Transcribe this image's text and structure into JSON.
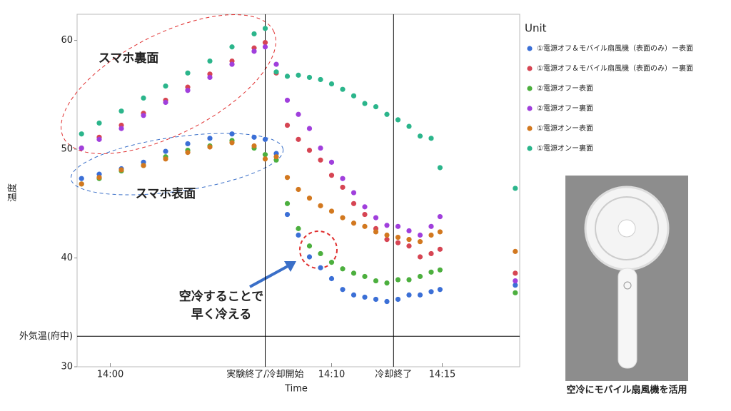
{
  "chart_data": {
    "type": "scatter",
    "x_label": "Time",
    "y_label": "温度",
    "legend_title": "Unit",
    "x": [
      -1.3,
      -0.5,
      0.5,
      1.5,
      2.5,
      3.5,
      4.5,
      5.5,
      6.5,
      7.0,
      7.5,
      8.0,
      8.5,
      9.0,
      9.5,
      10,
      10.5,
      11,
      11.5,
      12,
      12.5,
      13,
      13.5,
      14,
      14.5,
      14.9,
      18.3
    ],
    "series": [
      {
        "name": "①電源オフ＆モバイル扇風機（表面のみ）ー表面",
        "color": "#3b6fd6",
        "values": [
          47.3,
          47.7,
          48.2,
          48.8,
          49.8,
          50.5,
          51.0,
          51.4,
          51.1,
          50.9,
          49.6,
          44.0,
          42.1,
          40.1,
          39.1,
          38.1,
          37.1,
          36.6,
          36.4,
          36.2,
          36.0,
          36.2,
          36.6,
          36.6,
          36.9,
          37.1,
          37.5
        ]
      },
      {
        "name": "①電源オフ＆モバイル扇風機（表面のみ）ー裏面",
        "color": "#d64553",
        "values": [
          50.1,
          51.1,
          52.2,
          53.3,
          54.5,
          55.7,
          56.9,
          58.1,
          59.3,
          59.8,
          57.0,
          52.2,
          50.9,
          49.9,
          49.0,
          47.6,
          46.5,
          45.0,
          44.0,
          42.7,
          41.7,
          41.4,
          41.1,
          40.1,
          40.4,
          40.8,
          38.6
        ]
      },
      {
        "name": "②電源オフー表面",
        "color": "#4caf3e",
        "values": [
          46.8,
          47.3,
          48.0,
          48.5,
          49.3,
          49.9,
          50.3,
          50.8,
          50.1,
          49.5,
          49.0,
          45.0,
          42.7,
          41.1,
          40.4,
          39.6,
          39.0,
          38.6,
          38.3,
          37.9,
          37.7,
          38.0,
          38.0,
          38.3,
          38.7,
          38.9,
          36.8
        ]
      },
      {
        "name": "②電源オフー裏面",
        "color": "#a03fdc",
        "values": [
          50.1,
          50.9,
          51.9,
          53.1,
          54.3,
          55.4,
          56.6,
          57.8,
          59.0,
          59.4,
          57.8,
          54.5,
          53.2,
          51.9,
          50.1,
          48.8,
          47.3,
          46.0,
          44.7,
          43.7,
          43.0,
          42.9,
          42.5,
          42.1,
          42.9,
          43.8,
          37.9
        ]
      },
      {
        "name": "①電源オンー表面",
        "color": "#d2781f",
        "values": [
          46.8,
          47.4,
          48.1,
          48.5,
          49.1,
          49.7,
          50.2,
          50.6,
          50.3,
          49.1,
          49.3,
          47.4,
          46.3,
          45.5,
          44.8,
          44.3,
          43.7,
          43.2,
          42.9,
          42.4,
          42.1,
          41.9,
          41.7,
          41.5,
          42.1,
          42.4,
          40.6
        ]
      },
      {
        "name": "①電源オンー裏面",
        "color": "#2bb58b",
        "values": [
          51.4,
          52.4,
          53.5,
          54.7,
          55.8,
          57.0,
          58.1,
          59.4,
          60.6,
          61.1,
          57.1,
          56.7,
          56.8,
          56.6,
          56.4,
          56.0,
          55.5,
          54.9,
          54.2,
          53.9,
          53.2,
          52.7,
          52.1,
          51.2,
          51.0,
          48.3,
          46.4
        ]
      }
    ],
    "xlim": [
      -1.5,
      18.5
    ],
    "ylim": [
      30,
      62.4
    ],
    "xticks": [
      {
        "value": 0,
        "label": "14:00"
      },
      {
        "value": 7,
        "label": "実験終了/冷却開始",
        "line": true
      },
      {
        "value": 10,
        "label": "14:10"
      },
      {
        "value": 12.8,
        "label": "冷却終了",
        "line": true
      },
      {
        "value": 15,
        "label": "14:15"
      }
    ],
    "yticks": [
      30,
      {
        "value": 32.8,
        "label": "外気温(府中)",
        "line": true
      },
      40,
      50,
      60
    ],
    "annotations": [
      "スマホ裏面",
      "スマホ表面",
      "空冷することで",
      "早く冷える"
    ]
  },
  "photo": {
    "caption": "空冷にモバイル扇風機を活用"
  }
}
